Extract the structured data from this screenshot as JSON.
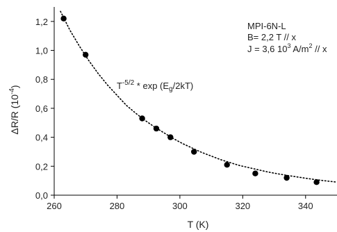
{
  "chart_data": {
    "type": "scatter",
    "xlabel": "T (K)",
    "ylabel_base": "ΔR/R (10",
    "ylabel_exp": "-4",
    "ylabel_close": ")",
    "xlim": [
      260,
      350
    ],
    "ylim": [
      0.0,
      1.3
    ],
    "xticks": [
      260,
      280,
      300,
      320,
      340
    ],
    "yticks": [
      0.0,
      0.2,
      0.4,
      0.6,
      0.8,
      1.0,
      1.2
    ],
    "xtick_labels": [
      "260",
      "280",
      "300",
      "320",
      "340"
    ],
    "ytick_labels": [
      "0,0",
      "0,2",
      "0,4",
      "0,6",
      "0,8",
      "1,0",
      "1,2"
    ],
    "grid": false,
    "series": [
      {
        "marker": "filled-circle",
        "color": "#000000",
        "x": [
          263,
          270,
          288,
          292.5,
          297,
          304.5,
          315,
          324,
          334,
          343.5
        ],
        "y": [
          1.22,
          0.97,
          0.53,
          0.46,
          0.4,
          0.3,
          0.21,
          0.15,
          0.12,
          0.09
        ]
      }
    ],
    "fit_curve": {
      "style": "dotted",
      "color": "#000000",
      "formula_label": {
        "t": "T",
        "exp": "-5/2",
        "mid": " * exp (E",
        "sub": "g",
        "tail": "/2kT)"
      },
      "x": [
        262,
        265,
        268,
        271,
        274,
        277,
        280,
        283,
        286,
        289,
        292,
        295,
        298,
        301,
        304,
        307,
        310,
        313,
        316,
        319,
        322,
        325,
        328,
        331,
        334,
        337,
        340,
        343,
        346,
        350
      ],
      "y": [
        1.27,
        1.14,
        1.03,
        0.93,
        0.84,
        0.76,
        0.69,
        0.62,
        0.565,
        0.515,
        0.47,
        0.43,
        0.39,
        0.355,
        0.325,
        0.295,
        0.27,
        0.245,
        0.225,
        0.205,
        0.19,
        0.175,
        0.16,
        0.148,
        0.137,
        0.127,
        0.117,
        0.108,
        0.1,
        0.09
      ]
    },
    "annotation": {
      "line1": "MPI-6N-L",
      "line2": "B= 2,2 T // x",
      "line3_a": "J = 3,6 10",
      "line3_sup1": "3",
      "line3_b": " A/m",
      "line3_sup2": "2",
      "line3_c": " // x"
    }
  }
}
